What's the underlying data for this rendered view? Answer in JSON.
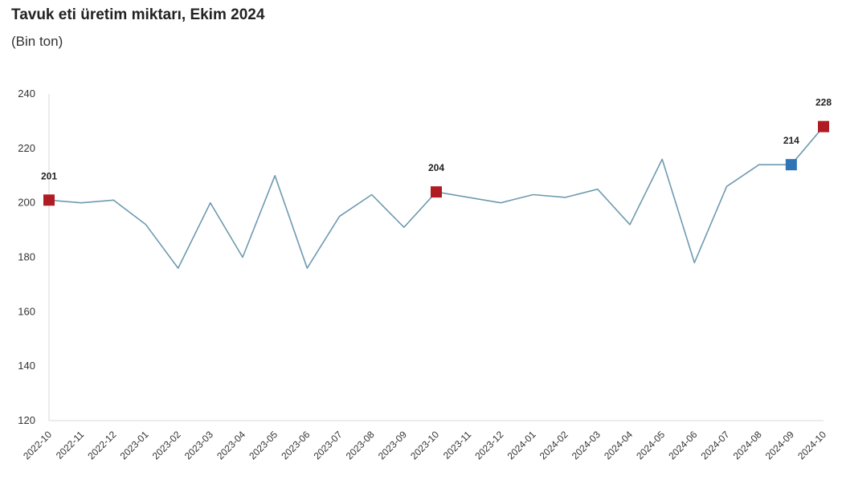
{
  "chart_data": {
    "type": "line",
    "title": "Tavuk eti üretim miktarı, Ekim 2024",
    "subtitle": "(Bin ton)",
    "xlabel": "",
    "ylabel": "",
    "ylim": [
      120,
      240
    ],
    "yticks": [
      120,
      140,
      160,
      180,
      200,
      220,
      240
    ],
    "grid": false,
    "line_color": "#6e9ab0",
    "categories": [
      "2022-10",
      "2022-11",
      "2022-12",
      "2023-01",
      "2023-02",
      "2023-03",
      "2023-04",
      "2023-05",
      "2023-06",
      "2023-07",
      "2023-08",
      "2023-09",
      "2023-10",
      "2023-11",
      "2023-12",
      "2024-01",
      "2024-02",
      "2024-03",
      "2024-04",
      "2024-05",
      "2024-06",
      "2024-07",
      "2024-08",
      "2024-09",
      "2024-10"
    ],
    "series": [
      {
        "values": [
          201,
          200,
          201,
          192,
          176,
          200,
          180,
          210,
          176,
          195,
          203,
          191,
          204,
          202,
          200,
          203,
          202,
          205,
          192,
          216,
          178,
          206,
          214,
          214,
          228
        ]
      }
    ],
    "highlights": [
      {
        "category": "2022-10",
        "value": 201,
        "label": "201",
        "color": "#b01c24"
      },
      {
        "category": "2023-10",
        "value": 204,
        "label": "204",
        "color": "#b01c24"
      },
      {
        "category": "2024-09",
        "value": 214,
        "label": "214",
        "color": "#2f74b5"
      },
      {
        "category": "2024-10",
        "value": 228,
        "label": "228",
        "color": "#b01c24"
      }
    ]
  }
}
